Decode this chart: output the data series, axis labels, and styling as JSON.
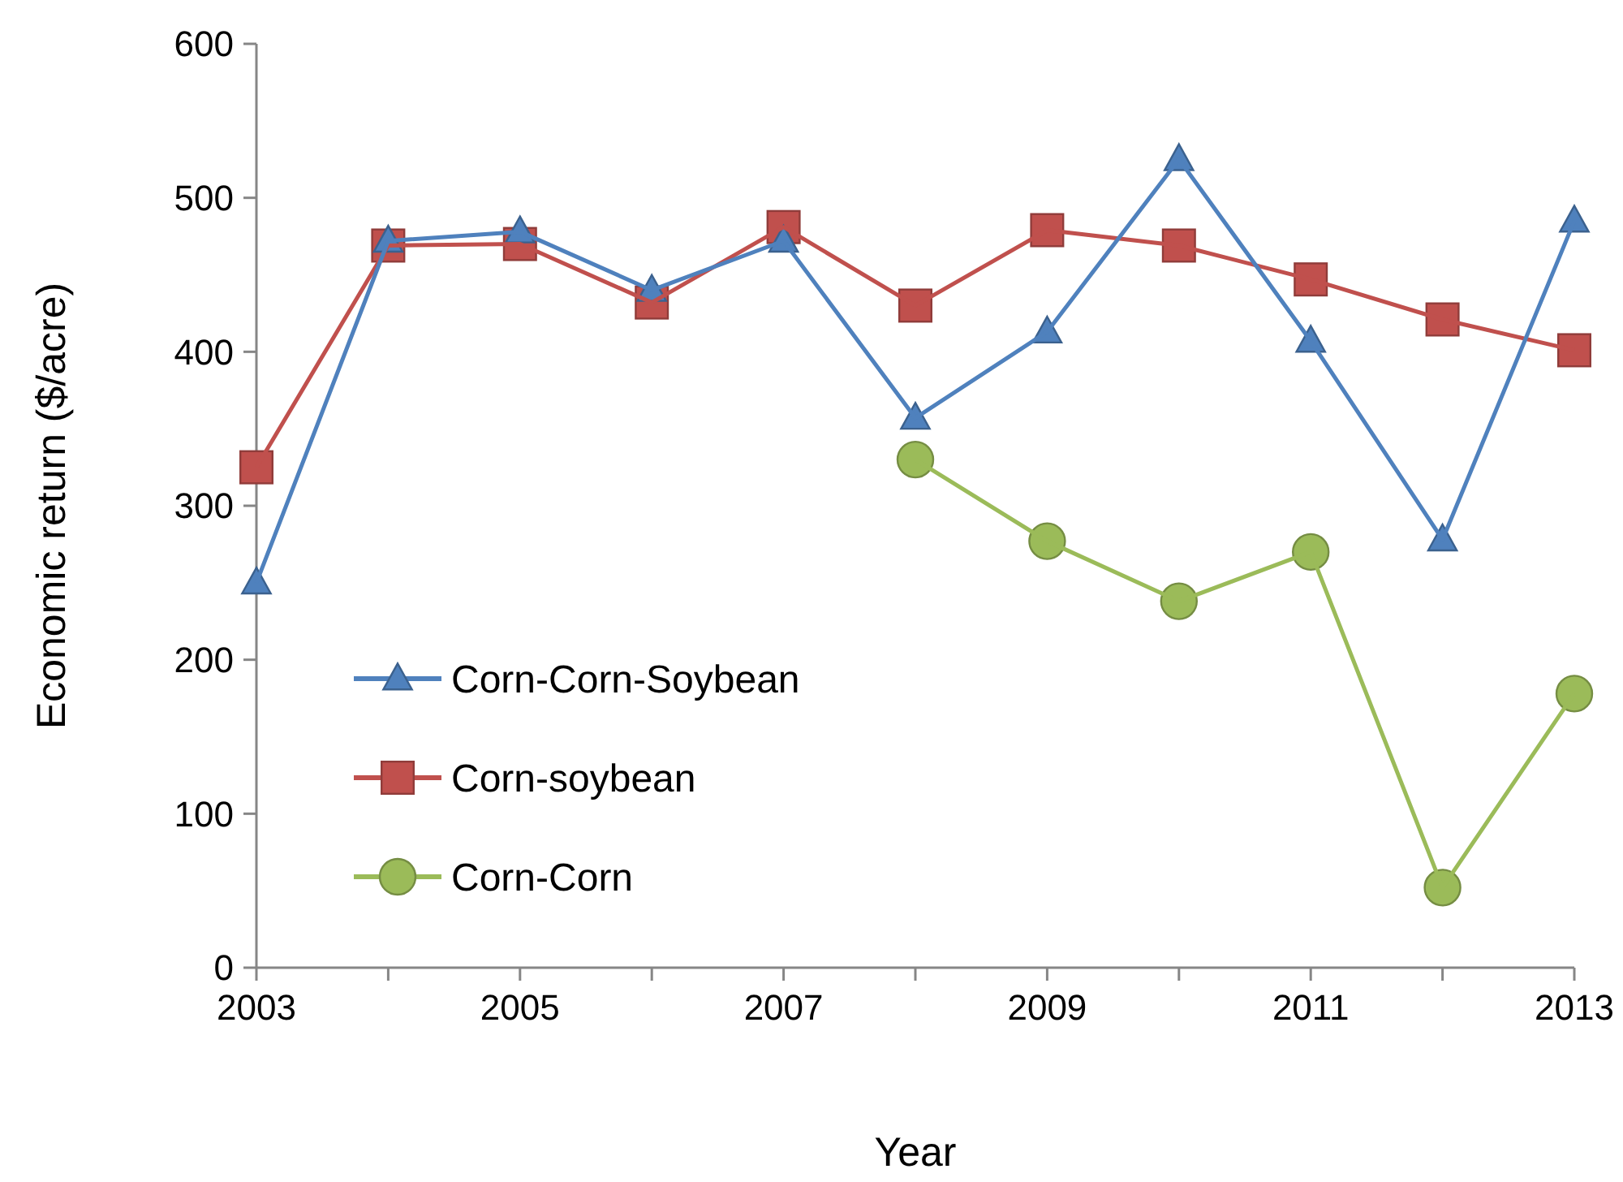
{
  "chart_data": {
    "type": "line",
    "xlabel": "Year",
    "ylabel": "Economic return ($/acre)",
    "x": [
      2003,
      2004,
      2005,
      2006,
      2007,
      2008,
      2009,
      2010,
      2011,
      2012,
      2013
    ],
    "xlim": [
      2003,
      2013
    ],
    "xticks": [
      2003,
      {
        "value": 2004,
        "label": null
      },
      2005,
      {
        "value": 2006,
        "label": null
      },
      2007,
      {
        "value": 2008,
        "label": null
      },
      2009,
      {
        "value": 2010,
        "label": null
      },
      2011,
      {
        "value": 2012,
        "label": null
      },
      2013
    ],
    "ylim": [
      0,
      600
    ],
    "yticks": [
      0,
      100,
      200,
      300,
      400,
      500,
      600
    ],
    "grid": false,
    "legend": "left",
    "series": [
      {
        "name": "Corn-Corn-Soybean",
        "color": "#4f81bd",
        "marker": "triangle",
        "values": [
          250,
          472,
          478,
          440,
          472,
          357,
          413,
          525,
          407,
          278,
          485
        ]
      },
      {
        "name": "Corn-soybean",
        "color": "#c0504d",
        "marker": "square",
        "values": [
          325,
          469,
          470,
          432,
          481,
          430,
          479,
          469,
          447,
          421,
          401
        ]
      },
      {
        "name": "Corn-Corn",
        "color": "#9bbb59",
        "marker": "circle",
        "values": [
          null,
          null,
          null,
          null,
          null,
          330,
          277,
          238,
          270,
          52,
          178
        ]
      }
    ]
  }
}
